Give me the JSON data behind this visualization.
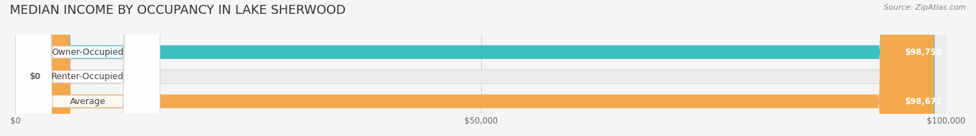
{
  "title": "MEDIAN INCOME BY OCCUPANCY IN LAKE SHERWOOD",
  "source": "Source: ZipAtlas.com",
  "categories": [
    "Owner-Occupied",
    "Renter-Occupied",
    "Average"
  ],
  "values": [
    98750,
    0,
    98672
  ],
  "bar_colors": [
    "#3bbfbf",
    "#c9a8d4",
    "#f5a94e"
  ],
  "label_colors": [
    "#3bbfbf",
    "#c9a8d4",
    "#f5a94e"
  ],
  "value_labels": [
    "$98,750",
    "$0",
    "$98,672"
  ],
  "xlim": [
    0,
    100000
  ],
  "xticks": [
    0,
    50000,
    100000
  ],
  "xtick_labels": [
    "$0",
    "$50,000",
    "$100,000"
  ],
  "background_color": "#f5f5f5",
  "bar_background": "#e8e8e8",
  "title_fontsize": 13,
  "bar_height": 0.55,
  "figsize": [
    14.06,
    1.96
  ]
}
